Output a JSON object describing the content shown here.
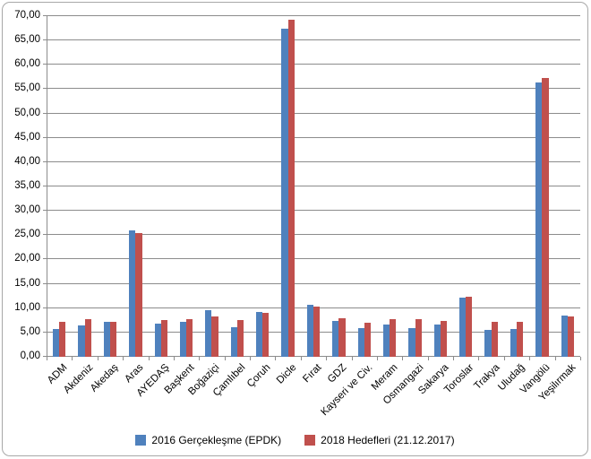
{
  "chart": {
    "background_color": "#ffffff",
    "frame_border_color": "#a8a8a8",
    "gridline_color": "#8c8c8c",
    "axis_color": "#8c8c8c",
    "text_color": "#000000"
  },
  "chart_data": {
    "type": "bar",
    "title": "",
    "xlabel": "",
    "ylabel": "",
    "grid": true,
    "legend_position": "bottom",
    "ylim": [
      0,
      70
    ],
    "y_tick_step": 5,
    "y_tick_labels": [
      "0,00",
      "5,00",
      "10,00",
      "15,00",
      "20,00",
      "25,00",
      "30,00",
      "35,00",
      "40,00",
      "45,00",
      "50,00",
      "55,00",
      "60,00",
      "65,00",
      "70,00"
    ],
    "categories": [
      "ADM",
      "Akdeniz",
      "Akedaş",
      "Aras",
      "AYEDAŞ",
      "Başkent",
      "Boğaziçi",
      "Çamlıbel",
      "Çoruh",
      "Dicle",
      "Fırat",
      "GDZ",
      "Kayseri ve Civ.",
      "Meram",
      "Osmangazi",
      "Sakarya",
      "Toroslar",
      "Trakya",
      "Uludağ",
      "Vangölü",
      "Yeşilırmak"
    ],
    "series": [
      {
        "name": "2016 Gerçekleşme (EPDK)",
        "color": "#4F81BD",
        "values": [
          5.8,
          6.5,
          7.2,
          25.9,
          6.9,
          7.1,
          9.5,
          6.1,
          9.3,
          67.4,
          10.7,
          7.4,
          5.9,
          6.6,
          5.9,
          6.6,
          12.1,
          5.6,
          5.8,
          56.3,
          8.4
        ]
      },
      {
        "name": "2018 Hedefleri (21.12.2017)",
        "color": "#C0504D",
        "values": [
          7.2,
          7.8,
          7.2,
          25.5,
          7.6,
          7.8,
          8.2,
          7.5,
          9.1,
          69.2,
          10.4,
          8.0,
          7.0,
          7.8,
          7.7,
          7.4,
          12.4,
          7.2,
          7.2,
          57.2,
          8.2
        ]
      }
    ]
  }
}
